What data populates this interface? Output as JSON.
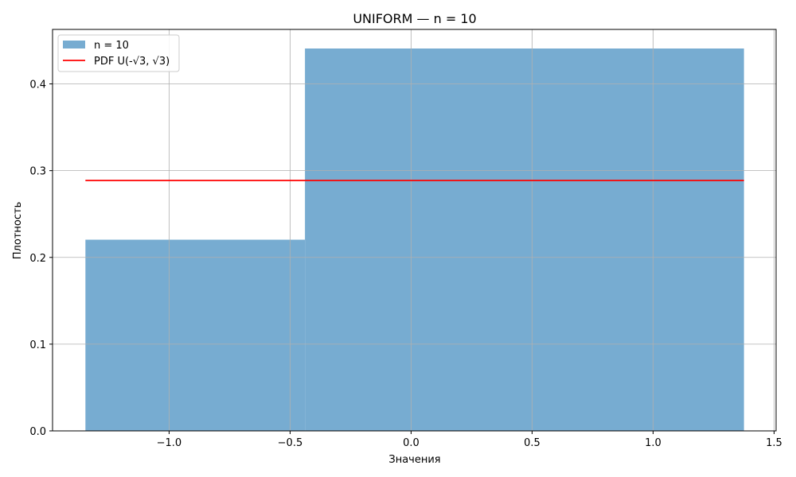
{
  "chart_data": {
    "type": "histogram",
    "title": "UNIFORM — n = 10",
    "xlabel": "Значения",
    "ylabel": "Плотность",
    "xlim": [
      -1.4817,
      1.5083
    ],
    "ylim": [
      0,
      0.4628
    ],
    "xticks": [
      -1.0,
      -0.5,
      0.0,
      0.5,
      1.0,
      1.5
    ],
    "xtick_labels": [
      "−1.0",
      "−0.5",
      "0.0",
      "0.5",
      "1.0",
      "1.5"
    ],
    "yticks": [
      0.0,
      0.1,
      0.2,
      0.3,
      0.4
    ],
    "ytick_labels": [
      "0.0",
      "0.1",
      "0.2",
      "0.3",
      "0.4"
    ],
    "grid": true,
    "legend_position": "top-left",
    "series": [
      {
        "name": "n = 10",
        "kind": "histogram",
        "color": "#77acd1",
        "bins": [
          {
            "x0": -1.3458,
            "x1": -0.4386,
            "density": 0.2204
          },
          {
            "x0": -0.4386,
            "x1": 1.3755,
            "density": 0.4408
          }
        ]
      },
      {
        "name": "PDF U(-√3, √3)",
        "kind": "line",
        "color": "#ff0000",
        "x": [
          -1.3458,
          1.3755
        ],
        "y": [
          0.2887,
          0.2887
        ]
      }
    ]
  }
}
